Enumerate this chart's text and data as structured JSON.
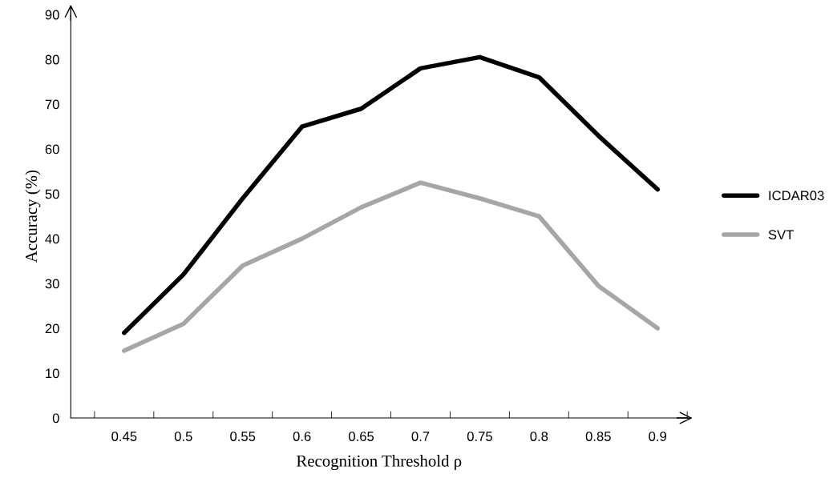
{
  "chart_data": {
    "type": "line",
    "xlabel": "Recognition Threshold ρ",
    "ylabel": "Accuracy (%)",
    "categories": [
      "0.45",
      "0.5",
      "0.55",
      "0.6",
      "0.65",
      "0.7",
      "0.75",
      "0.8",
      "0.85",
      "0.9"
    ],
    "series": [
      {
        "name": "ICDAR03",
        "color": "#000000",
        "values": [
          19,
          32,
          49,
          65,
          69,
          78,
          80.5,
          76,
          63,
          51
        ]
      },
      {
        "name": "SVT",
        "color": "#a6a6a6",
        "values": [
          15,
          21,
          34,
          40,
          47,
          52.5,
          49,
          45,
          29.5,
          20
        ]
      }
    ],
    "ylim": [
      0,
      90
    ],
    "yticks": [
      0,
      10,
      20,
      30,
      40,
      50,
      60,
      70,
      80,
      90
    ],
    "grid": false,
    "legend": "right",
    "marker": "none",
    "line_style": "solid"
  }
}
